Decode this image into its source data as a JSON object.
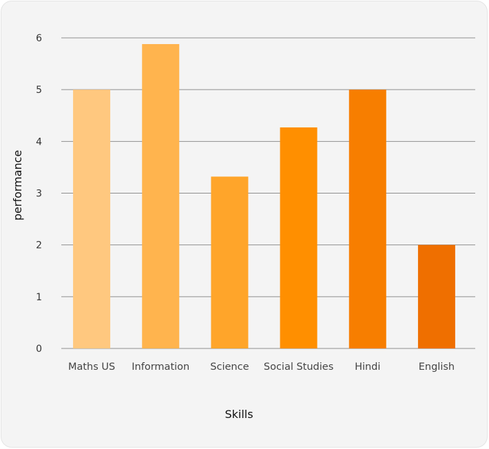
{
  "chart_data": {
    "type": "bar",
    "categories": [
      "Maths US",
      "Information",
      "Science",
      "Social Studies",
      "Hindi",
      "English"
    ],
    "values": [
      5,
      5.88,
      3.32,
      4.27,
      5,
      2
    ],
    "xlabel": "Skills",
    "ylabel": "performance",
    "ylim": [
      0,
      6
    ],
    "yticks": [
      0,
      1,
      2,
      3,
      4,
      5,
      6
    ],
    "grid": true,
    "legend": "none",
    "colors": [
      "#ffc87f",
      "#ffb44e",
      "#ffa52a",
      "#ff8f00",
      "#f77e00",
      "#ef6f00"
    ],
    "gridline_color": "#8e8e8e"
  }
}
